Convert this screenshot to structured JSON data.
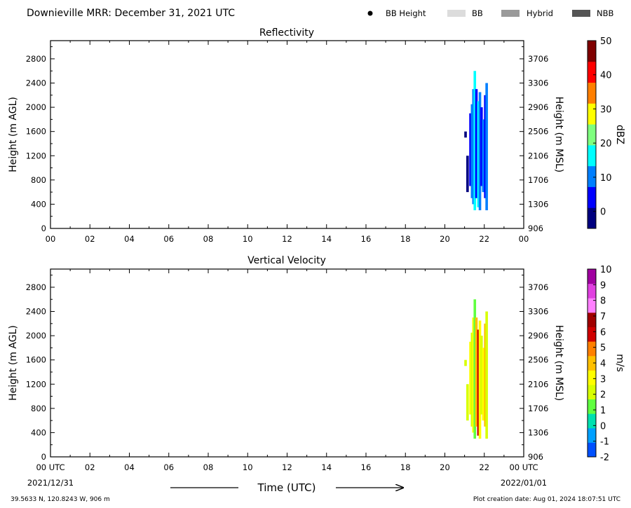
{
  "header": {
    "title": "Downieville MRR:  December 31, 2021 UTC",
    "legend": [
      {
        "label": "BB Height",
        "kind": "dot",
        "color": "#000000"
      },
      {
        "label": "BB",
        "kind": "box",
        "color": "#dcdcdc"
      },
      {
        "label": "Hybrid",
        "kind": "box",
        "color": "#9a9a9a"
      },
      {
        "label": "NBB",
        "kind": "box",
        "color": "#555555"
      }
    ]
  },
  "footer": {
    "coords": "39.5633 N, 120.8243 W, 906 m",
    "creation": "Plot creation date: Aug 01, 2024 18:07:51 UTC",
    "start_date": "2021/12/31",
    "end_date": "2022/01/01",
    "xlabel": "Time (UTC)"
  },
  "chart_data": [
    {
      "type": "heatmap",
      "title": "Reflectivity",
      "ylabel_left": "Height (m AGL)",
      "ylabel_right": "Height (m MSL)",
      "xlim": [
        0,
        24
      ],
      "ylim": [
        0,
        3100
      ],
      "x_ticks": [
        "00",
        "02",
        "04",
        "06",
        "08",
        "10",
        "12",
        "14",
        "16",
        "18",
        "20",
        "22",
        "00"
      ],
      "y_ticks_left": [
        0,
        400,
        800,
        1200,
        1600,
        2000,
        2400,
        2800
      ],
      "y_ticks_right": [
        906,
        1306,
        1706,
        2106,
        2506,
        2906,
        3306,
        3706
      ],
      "colorbar": {
        "label": "dBZ",
        "range": [
          -5,
          50
        ],
        "ticks": [
          0,
          10,
          20,
          30,
          40,
          50
        ],
        "colors": [
          "#00007f",
          "#0000ff",
          "#007fff",
          "#00ffff",
          "#7fff7f",
          "#ffff00",
          "#ff7f00",
          "#ff0000",
          "#7f0000"
        ]
      },
      "data_extent": {
        "time_start": 21.0,
        "time_end": 22.2,
        "height_min": 300,
        "height_max": 2600
      },
      "series": [
        {
          "time": 21.05,
          "bottom": 1500,
          "top": 1600,
          "value": -3
        },
        {
          "time": 21.15,
          "bottom": 600,
          "top": 1200,
          "value": -2
        },
        {
          "time": 21.3,
          "bottom": 700,
          "top": 1900,
          "value": 5
        },
        {
          "time": 21.38,
          "bottom": 500,
          "top": 2050,
          "value": 12
        },
        {
          "time": 21.45,
          "bottom": 400,
          "top": 2300,
          "value": 8
        },
        {
          "time": 21.52,
          "bottom": 300,
          "top": 2600,
          "value": 16
        },
        {
          "time": 21.6,
          "bottom": 500,
          "top": 2300,
          "value": 6
        },
        {
          "time": 21.7,
          "bottom": 350,
          "top": 2100,
          "value": 14
        },
        {
          "time": 21.78,
          "bottom": 300,
          "top": 2250,
          "value": 10
        },
        {
          "time": 21.86,
          "bottom": 700,
          "top": 2000,
          "value": 4
        },
        {
          "time": 21.95,
          "bottom": 600,
          "top": 1800,
          "value": 12
        },
        {
          "time": 22.05,
          "bottom": 500,
          "top": 2200,
          "value": 7
        },
        {
          "time": 22.12,
          "bottom": 300,
          "top": 2400,
          "value": 9
        }
      ]
    },
    {
      "type": "heatmap",
      "title": "Vertical Velocity",
      "ylabel_left": "Height (m AGL)",
      "ylabel_right": "Height (m MSL)",
      "xlim": [
        0,
        24
      ],
      "ylim": [
        0,
        3100
      ],
      "x_ticks": [
        "00 UTC",
        "02",
        "04",
        "06",
        "08",
        "10",
        "12",
        "14",
        "16",
        "18",
        "20",
        "22",
        "00 UTC"
      ],
      "y_ticks_left": [
        0,
        400,
        800,
        1200,
        1600,
        2000,
        2400,
        2800
      ],
      "y_ticks_right": [
        906,
        1306,
        1706,
        2106,
        2506,
        2906,
        3306,
        3706
      ],
      "colorbar": {
        "label": "m/s",
        "range": [
          -2,
          10
        ],
        "ticks": [
          -2,
          -1,
          0,
          1,
          2,
          3,
          4,
          5,
          6,
          7,
          8,
          9,
          10
        ],
        "colors": [
          "#0050ff",
          "#00a0ff",
          "#00e0b0",
          "#60ff40",
          "#d8ff00",
          "#ffff00",
          "#ffc000",
          "#ff8000",
          "#d00000",
          "#a00000",
          "#ff80ff",
          "#e040e0",
          "#a000a0"
        ]
      },
      "data_extent": {
        "time_start": 21.0,
        "time_end": 22.2,
        "height_min": 300,
        "height_max": 2600
      },
      "series": [
        {
          "time": 21.05,
          "bottom": 1500,
          "top": 1600,
          "value": 2.5
        },
        {
          "time": 21.15,
          "bottom": 600,
          "top": 1200,
          "value": 2
        },
        {
          "time": 21.3,
          "bottom": 700,
          "top": 1900,
          "value": 3
        },
        {
          "time": 21.38,
          "bottom": 500,
          "top": 2050,
          "value": 2.5
        },
        {
          "time": 21.45,
          "bottom": 400,
          "top": 2300,
          "value": 3.5
        },
        {
          "time": 21.52,
          "bottom": 300,
          "top": 2600,
          "value": 1.5
        },
        {
          "time": 21.6,
          "bottom": 500,
          "top": 2300,
          "value": 4
        },
        {
          "time": 21.7,
          "bottom": 350,
          "top": 2100,
          "value": 5.5
        },
        {
          "time": 21.78,
          "bottom": 300,
          "top": 2250,
          "value": 3
        },
        {
          "time": 21.86,
          "bottom": 700,
          "top": 2000,
          "value": 2.5
        },
        {
          "time": 21.95,
          "bottom": 600,
          "top": 1800,
          "value": 3.5
        },
        {
          "time": 22.05,
          "bottom": 500,
          "top": 2200,
          "value": 4
        },
        {
          "time": 22.12,
          "bottom": 300,
          "top": 2400,
          "value": 2
        }
      ]
    }
  ]
}
